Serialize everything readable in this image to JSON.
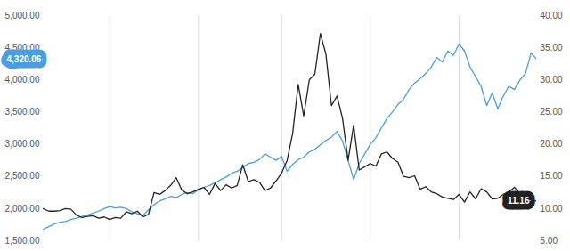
{
  "chart_data": {
    "type": "line",
    "x": [
      0,
      1,
      2,
      3,
      4,
      5,
      6,
      7,
      8,
      9,
      10,
      11,
      12,
      13,
      14,
      15,
      16,
      17,
      18,
      19,
      20,
      21,
      22,
      23,
      24,
      25,
      26,
      27,
      28,
      29,
      30,
      31,
      32,
      33,
      34,
      35,
      36,
      37,
      38,
      39,
      40,
      41,
      42,
      43,
      44,
      45,
      46,
      47,
      48,
      49,
      50,
      51,
      52,
      53,
      54,
      55,
      56,
      57,
      58,
      59,
      60,
      61,
      62,
      63,
      64,
      65,
      66,
      67,
      68,
      69,
      70,
      71,
      72,
      73,
      74,
      75,
      76,
      77,
      78,
      79,
      80,
      81,
      82,
      83,
      84,
      85,
      86,
      87,
      88,
      89
    ],
    "xlim": [
      0,
      89
    ],
    "xticks": [
      12,
      28,
      43,
      59,
      75
    ],
    "ylim": [
      1500,
      5000
    ],
    "yticks": [
      {
        "value": 1500,
        "label": "1,500.00"
      },
      {
        "value": 2000,
        "label": "2,000.00"
      },
      {
        "value": 2500,
        "label": "2,500.00"
      },
      {
        "value": 3000,
        "label": "3,000.00"
      },
      {
        "value": 3500,
        "label": "3,500.00"
      },
      {
        "value": 4000,
        "label": "4,000.00"
      },
      {
        "value": 4500,
        "label": "4,500.00"
      },
      {
        "value": 5000,
        "label": "5,000.00"
      }
    ],
    "y2lim": [
      5,
      40
    ],
    "y2ticks": [
      {
        "value": 5,
        "label": "5.00"
      },
      {
        "value": 10,
        "label": "10.00"
      },
      {
        "value": 15,
        "label": "15.00"
      },
      {
        "value": 20,
        "label": "20.00"
      },
      {
        "value": 25,
        "label": "25.00"
      },
      {
        "value": 30,
        "label": "30.00"
      },
      {
        "value": 35,
        "label": "35.00"
      },
      {
        "value": 40,
        "label": "40.00"
      }
    ],
    "grid": "x",
    "tick_labels": "y",
    "series": [
      {
        "color": "#4a9ee0",
        "axis": "y",
        "values": [
          1680,
          1720,
          1760,
          1790,
          1800,
          1830,
          1850,
          1880,
          1900,
          1930,
          1960,
          2000,
          2030,
          2010,
          2020,
          2000,
          1950,
          1920,
          1890,
          1980,
          2060,
          2120,
          2150,
          2190,
          2170,
          2220,
          2250,
          2230,
          2290,
          2330,
          2360,
          2400,
          2450,
          2490,
          2550,
          2580,
          2640,
          2700,
          2720,
          2760,
          2850,
          2800,
          2750,
          2810,
          2580,
          2690,
          2760,
          2800,
          2880,
          2920,
          2990,
          3060,
          3110,
          3200,
          3050,
          2750,
          2450,
          2700,
          2850,
          3000,
          3100,
          3250,
          3400,
          3500,
          3620,
          3700,
          3850,
          3950,
          4020,
          4100,
          4200,
          4350,
          4280,
          4450,
          4380,
          4560,
          4450,
          4200,
          4050,
          3900,
          3600,
          3800,
          3550,
          3750,
          3900,
          3850,
          4000,
          4100,
          4420,
          4320.06
        ]
      },
      {
        "color": "#222222",
        "axis": "y2",
        "values": [
          10.0,
          9.6,
          9.6,
          9.7,
          10.0,
          9.9,
          9.0,
          8.6,
          8.8,
          8.9,
          8.5,
          8.7,
          8.3,
          8.6,
          8.5,
          9.5,
          9.2,
          9.6,
          8.7,
          9.1,
          12.5,
          12.2,
          12.8,
          13.6,
          14.8,
          12.9,
          12.3,
          12.6,
          13.0,
          13.3,
          12.2,
          13.9,
          12.8,
          13.7,
          13.2,
          13.6,
          16.8,
          14.2,
          14.5,
          14.1,
          12.8,
          13.2,
          14.3,
          15.5,
          17.5,
          21.7,
          29.3,
          24.4,
          30.0,
          30.9,
          37.2,
          34.0,
          26.0,
          27.5,
          24.0,
          17.5,
          23.0,
          16.0,
          16.5,
          17.0,
          16.6,
          18.5,
          18.8,
          17.8,
          17.2,
          15.0,
          14.8,
          15.1,
          13.0,
          13.4,
          12.6,
          12.3,
          11.8,
          11.6,
          11.4,
          12.2,
          11.0,
          12.6,
          11.5,
          13.1,
          12.6,
          11.5,
          11.6,
          12.2,
          12.6,
          13.3,
          12.4,
          11.6,
          11.4,
          11.16
        ]
      }
    ],
    "annotations": [
      {
        "text": "4,320.06",
        "value": 4320.06,
        "axis": "y"
      },
      {
        "text": "11.16",
        "value": 11.16,
        "axis": "y2"
      }
    ]
  }
}
